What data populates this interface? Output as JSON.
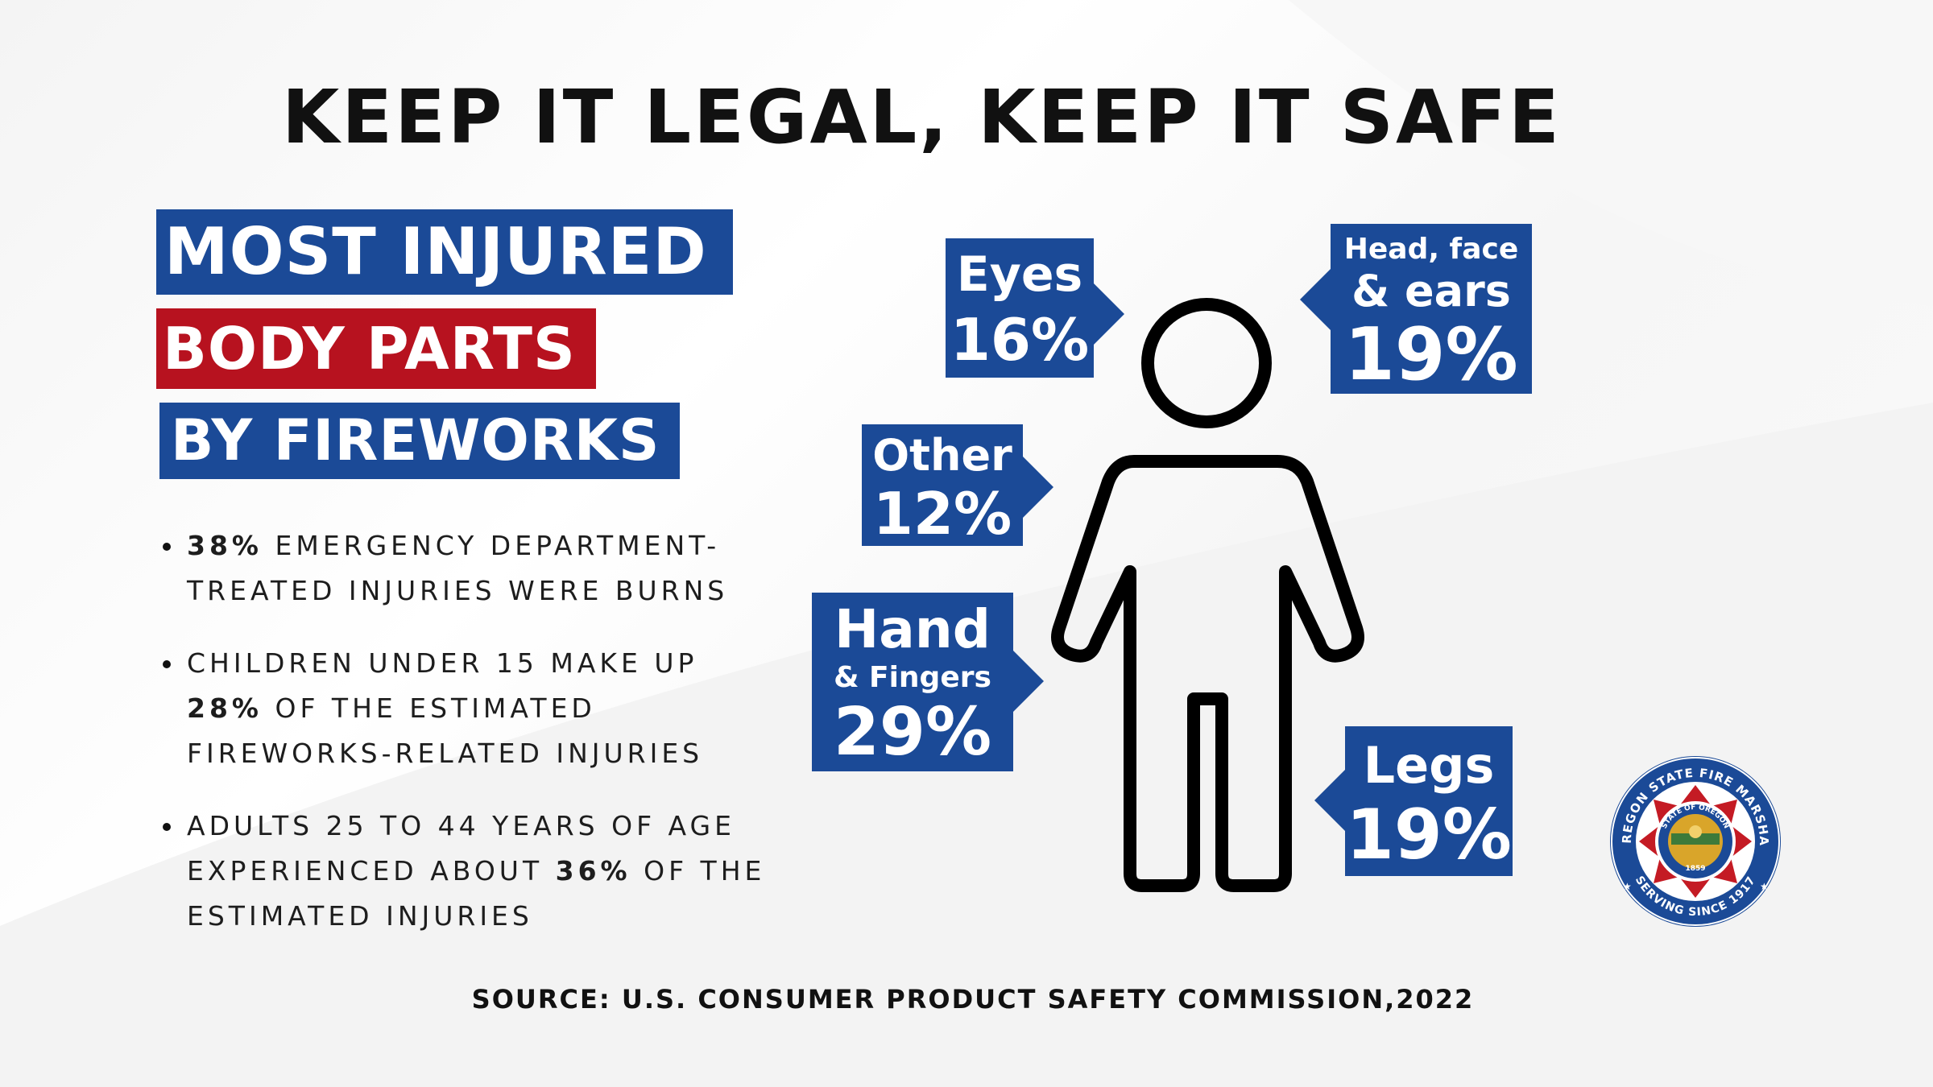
{
  "title": "KEEP IT LEGAL, KEEP IT SAFE",
  "heading": {
    "line1": "MOST INJURED",
    "line2": "BODY PARTS",
    "line3": "BY FIREWORKS"
  },
  "colors": {
    "blue": "#1b4a97",
    "red": "#b7121f",
    "text": "#111111"
  },
  "bullets": [
    {
      "bold": "38%",
      "text": " EMERGENCY DEPARTMENT-TREATED INJURIES WERE BURNS"
    },
    {
      "text_before": "CHILDREN UNDER 15 MAKE UP ",
      "bold": "28%",
      "text_after": " OF THE ESTIMATED FIREWORKS-RELATED INJURIES"
    },
    {
      "text_before": "ADULTS 25 TO 44 YEARS OF AGE EXPERIENCED ABOUT ",
      "bold": "36%",
      "text_after": " OF THE ESTIMATED INJURIES"
    }
  ],
  "callouts": {
    "eyes": {
      "label": "Eyes",
      "percent": "16%"
    },
    "head": {
      "sub": "Head, face",
      "label": "& ears",
      "percent": "19%"
    },
    "other": {
      "label": "Other",
      "percent": "12%"
    },
    "hand": {
      "label": "Hand",
      "sub": "& Fingers",
      "percent": "29%"
    },
    "legs": {
      "label": "Legs",
      "percent": "19%"
    }
  },
  "logo": {
    "ring_top": "OREGON STATE FIRE MARSHAL",
    "ring_bottom": "SERVING SINCE 1917",
    "seal_top": "STATE OF OREGON",
    "seal_year": "1859"
  },
  "source": "SOURCE: U.S. CONSUMER PRODUCT SAFETY COMMISSION,2022",
  "icons": [
    "person-outline-icon",
    "fire-marshal-logo-icon"
  ]
}
